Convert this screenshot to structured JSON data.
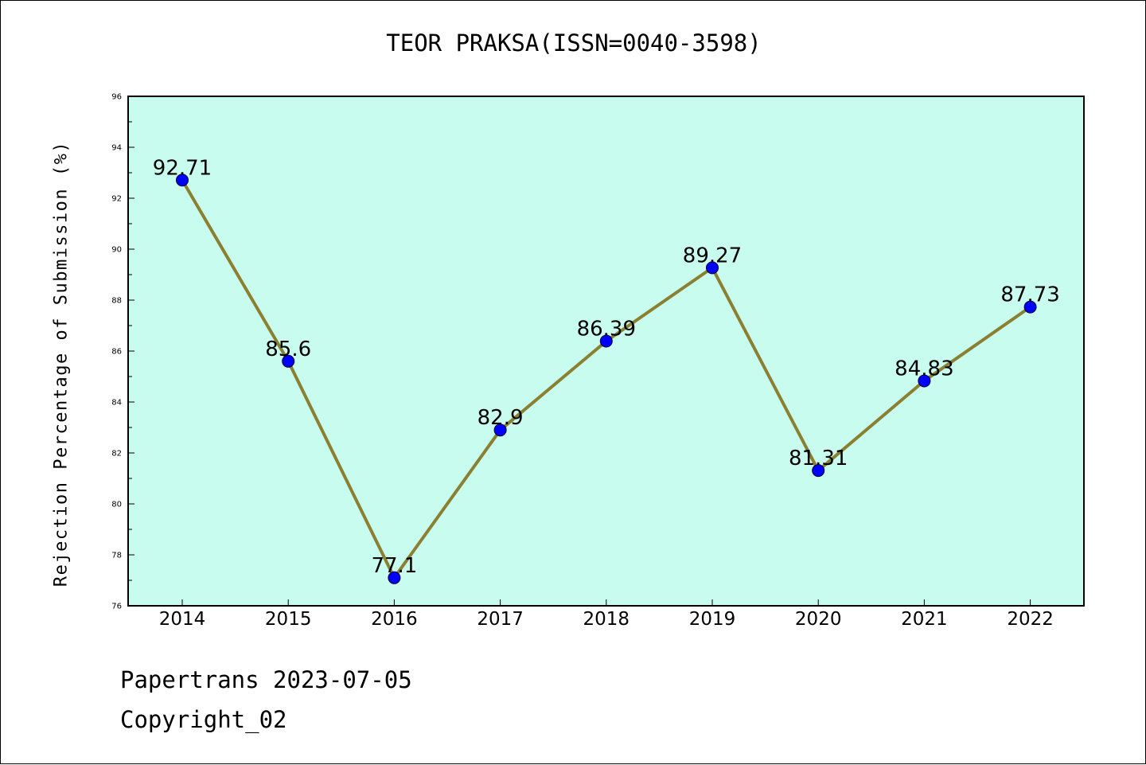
{
  "chart_data": {
    "type": "line",
    "title": "TEOR PRAKSA(ISSN=0040-3598)",
    "xlabel": "",
    "ylabel": "Rejection Percentage of Submission (%)",
    "categories": [
      "2014",
      "2015",
      "2016",
      "2017",
      "2018",
      "2019",
      "2020",
      "2021",
      "2022"
    ],
    "series": [
      {
        "values": [
          92.71,
          85.6,
          77.1,
          82.9,
          86.39,
          89.27,
          81.31,
          84.83,
          87.73
        ],
        "labels": [
          "92.71",
          "85.6",
          "77.1",
          "82.9",
          "86.39",
          "89.27",
          "81.31",
          "84.83",
          "87.73"
        ],
        "line_color": "#8b8032",
        "marker_color": "#0000ff"
      }
    ],
    "ylim": [
      76,
      96
    ],
    "yticks": [
      "76",
      "78",
      "80",
      "82",
      "84",
      "86",
      "88",
      "90",
      "92",
      "94",
      "96"
    ],
    "plot_background": "#c8fcee",
    "grid": false,
    "legend": "none"
  },
  "footer": {
    "line1": "Papertrans 2023-07-05",
    "line2": "Copyright_02"
  }
}
